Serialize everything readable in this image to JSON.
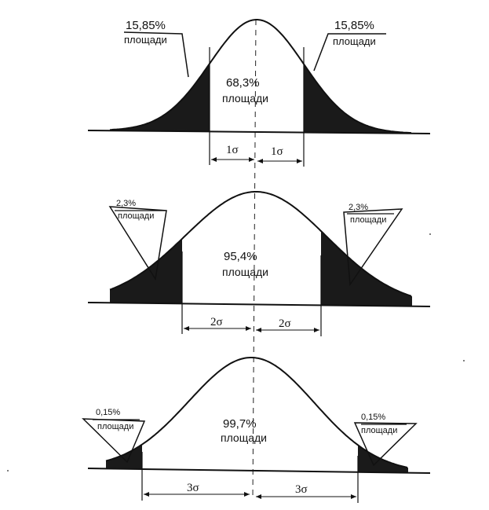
{
  "diagram": {
    "panels": [
      {
        "id": "one-sigma",
        "center_label": "68,3%",
        "center_sub": "площади",
        "left_tail_pct": "15,85%",
        "left_tail_sub": "площади",
        "right_tail_pct": "15,85%",
        "right_tail_sub": "площади",
        "left_interval": "1σ",
        "right_interval": "1σ",
        "sigma_multiple": 1
      },
      {
        "id": "two-sigma",
        "center_label": "95,4%",
        "center_sub": "площади",
        "left_tail_pct": "2,3%",
        "left_tail_sub": "площади",
        "right_tail_pct": "2,3%",
        "right_tail_sub": "площади",
        "left_interval": "2σ",
        "right_interval": "2σ",
        "sigma_multiple": 2
      },
      {
        "id": "three-sigma",
        "center_label": "99,7%",
        "center_sub": "площади",
        "left_tail_pct": "0,15%",
        "left_tail_sub": "площади",
        "right_tail_pct": "0,15%",
        "right_tail_sub": "площади",
        "left_interval": "3σ",
        "right_interval": "3σ",
        "sigma_multiple": 3
      }
    ],
    "colors": {
      "ink": "#111111",
      "tail_fill": "#1a1a1a"
    }
  }
}
